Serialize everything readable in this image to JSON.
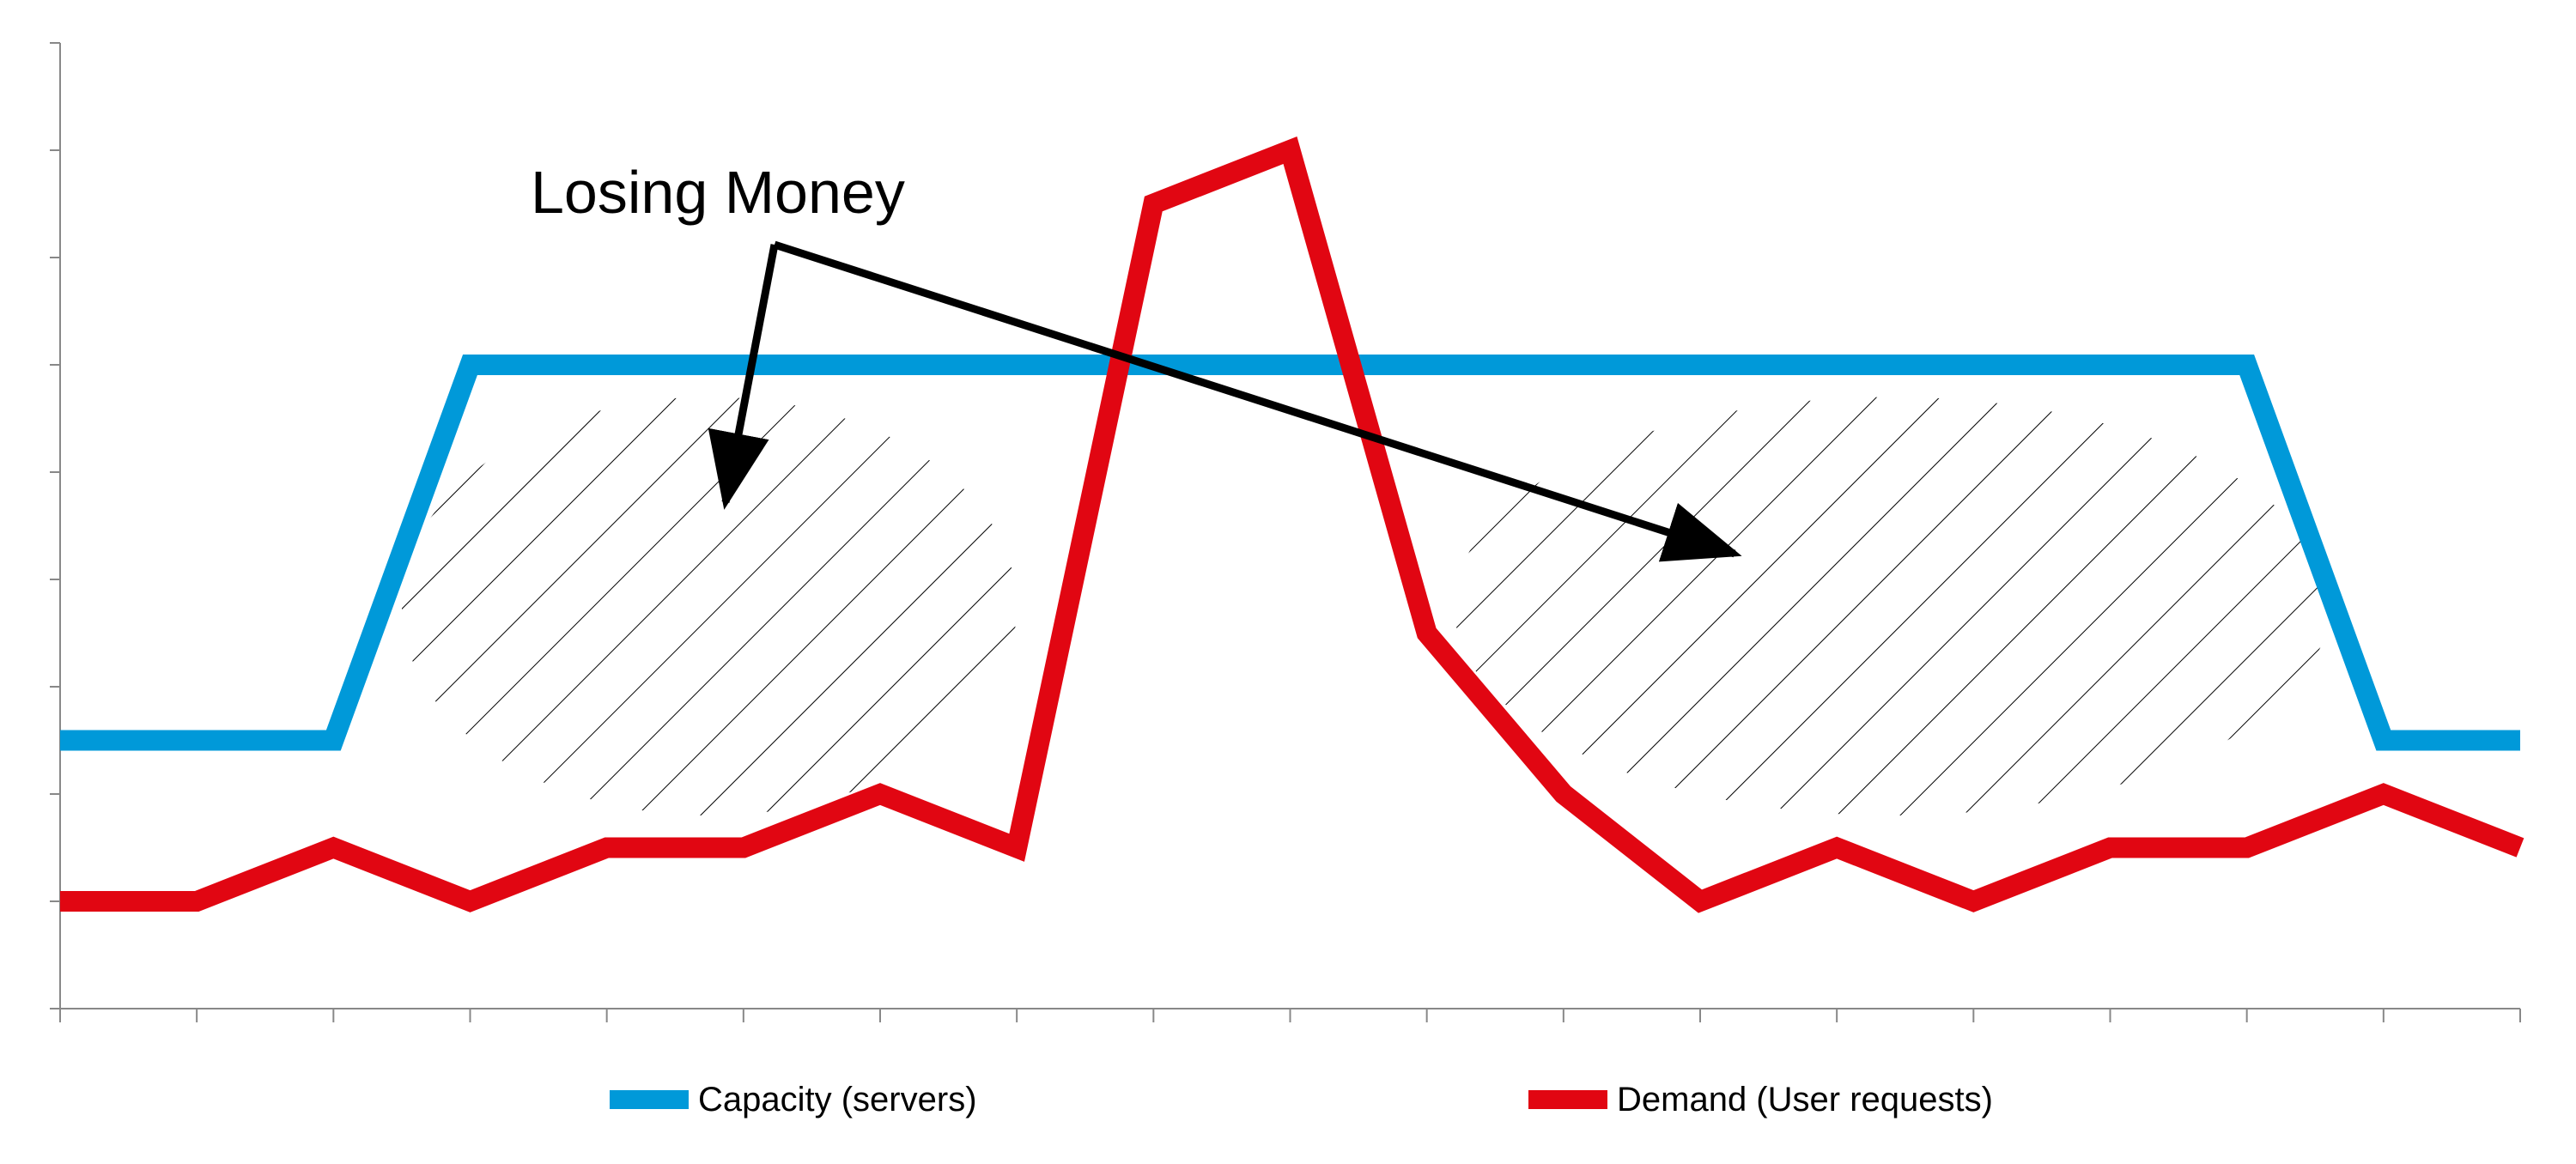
{
  "chart_data": {
    "type": "line",
    "title": "",
    "xlabel": "",
    "ylabel": "",
    "x": [
      0,
      1,
      2,
      3,
      4,
      5,
      6,
      7,
      8,
      9,
      10,
      11,
      12,
      13,
      14,
      15,
      16,
      17,
      18
    ],
    "ylim": [
      0,
      9
    ],
    "grid": false,
    "legend_position": "bottom",
    "series": [
      {
        "name": "Capacity (servers)",
        "color": "#0099d9",
        "values": [
          2.5,
          2.5,
          2.5,
          6,
          6,
          6,
          6,
          6,
          6,
          6,
          6,
          6,
          6,
          6,
          6,
          6,
          6,
          2.5,
          2.5
        ]
      },
      {
        "name": "Demand (User requests)",
        "color": "#e10612",
        "values": [
          1,
          1,
          1.5,
          1,
          1.5,
          1.5,
          2,
          1.5,
          7.5,
          8,
          3.5,
          2,
          1,
          1.5,
          1,
          1.5,
          1.5,
          2,
          1.5
        ]
      }
    ],
    "annotations": [
      {
        "text": "Losing Money",
        "arrows_to_shaded_regions": 2
      }
    ],
    "shaded_regions": [
      {
        "between": "Capacity and Demand",
        "pattern": "diagonal-hatch",
        "x_range": [
          2.5,
          7
        ]
      },
      {
        "between": "Capacity and Demand",
        "pattern": "diagonal-hatch",
        "x_range": [
          10.2,
          16.6
        ]
      }
    ]
  }
}
